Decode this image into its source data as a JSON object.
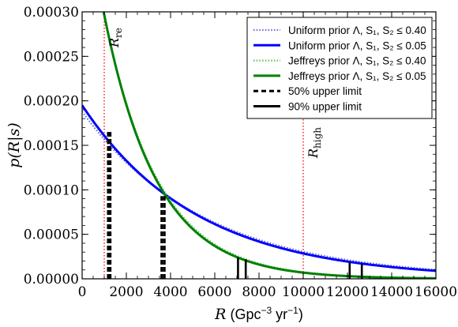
{
  "chart_data": {
    "type": "line",
    "xlabel_var": "R",
    "xlabel_unit": "(Gpc",
    "xlabel_exp": "−3",
    "xlabel_unit2": " yr",
    "xlabel_exp2": "−1",
    "xlabel_close": ")",
    "ylabel": "p(R|s)",
    "xlim": [
      0,
      16000
    ],
    "ylim": [
      0,
      0.0003
    ],
    "x_ticks": [
      0,
      2000,
      4000,
      6000,
      8000,
      10000,
      12000,
      14000,
      16000
    ],
    "x_tick_labels": [
      "0",
      "2000",
      "4000",
      "6000",
      "8000",
      "10000",
      "12000",
      "14000",
      "16000"
    ],
    "y_ticks": [
      0,
      5e-05,
      0.0001,
      0.00015,
      0.0002,
      0.00025,
      0.0003
    ],
    "y_tick_labels": [
      "0.00000",
      "0.00005",
      "0.00010",
      "0.00015",
      "0.00020",
      "0.00025",
      "0.00030"
    ],
    "series": [
      {
        "name": "Uniform prior Λ, S₁, S₂ ≤ 0.40",
        "color": "#6a6ad0",
        "style": "dotted",
        "scale": 5500,
        "p0": 0.000188
      },
      {
        "name": "Uniform prior Λ, S₁, S₂ ≤ 0.05",
        "color": "#0000ff",
        "style": "solid",
        "scale": 5200,
        "p0": 0.000195
      },
      {
        "name": "Jeffreys prior Λ, S₁, S₂ ≤ 0.40",
        "color": "#55c855",
        "style": "dotted",
        "scale": 2460,
        "p0": 0.000445
      },
      {
        "name": "Jeffreys prior Λ, S₁, S₂ ≤ 0.05",
        "color": "#008000",
        "style": "solid",
        "scale": 2400,
        "p0": 0.00045
      }
    ],
    "legend_extra": [
      {
        "name": "50% upper limit",
        "style": "dashed",
        "color": "#000000"
      },
      {
        "name": "90% upper limit",
        "style": "solid",
        "color": "#000000"
      }
    ],
    "upper_limits_50": [
      {
        "x": 1180,
        "top": 0.000165
      },
      {
        "x": 1270,
        "top": 0.000165
      },
      {
        "x": 3600,
        "top": 9.3e-05
      },
      {
        "x": 3720,
        "top": 9.3e-05
      }
    ],
    "upper_limits_90": [
      {
        "x": 7050,
        "top": 2.4e-05
      },
      {
        "x": 7400,
        "top": 2.2e-05
      },
      {
        "x": 12100,
        "top": 1.8e-05
      },
      {
        "x": 12650,
        "top": 1.7e-05
      }
    ],
    "vlines": [
      {
        "x": 1000,
        "label_main": "R",
        "label_sub": "re",
        "color": "#ff0000"
      },
      {
        "x": 10000,
        "label_main": "R",
        "label_sub": "high",
        "color": "#ff0000"
      }
    ],
    "legend_position": "top-right"
  }
}
